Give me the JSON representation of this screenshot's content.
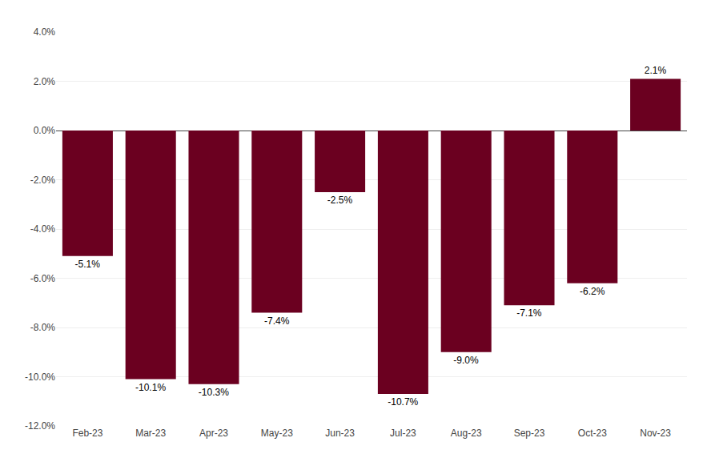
{
  "chart_data": {
    "type": "bar",
    "categories": [
      "Feb-23",
      "Mar-23",
      "Apr-23",
      "May-23",
      "Jun-23",
      "Jul-23",
      "Aug-23",
      "Sep-23",
      "Oct-23",
      "Nov-23"
    ],
    "values": [
      -5.1,
      -10.1,
      -10.3,
      -7.4,
      -2.5,
      -10.7,
      -9.0,
      -7.1,
      -6.2,
      2.1
    ],
    "value_labels": [
      "-5.1%",
      "-10.1%",
      "-10.3%",
      "-7.4%",
      "-2.5%",
      "-10.7%",
      "-9.0%",
      "-7.1%",
      "-6.2%",
      "2.1%"
    ],
    "data_labels": true,
    "color": "#6b0020",
    "ylim": [
      -12.0,
      4.0
    ],
    "yticks": [
      {
        "value": -12.0,
        "label": "-12.0%"
      },
      {
        "value": -10.0,
        "label": "-10.0%"
      },
      {
        "value": -8.0,
        "label": "-8.0%"
      },
      {
        "value": -6.0,
        "label": "-6.0%"
      },
      {
        "value": -4.0,
        "label": "-4.0%"
      },
      {
        "value": -2.0,
        "label": "-2.0%"
      },
      {
        "value": 0.0,
        "label": "0.0%"
      },
      {
        "value": 2.0,
        "label": "2.0%"
      },
      {
        "value": 4.0,
        "label": "4.0%"
      }
    ],
    "grid": true
  }
}
